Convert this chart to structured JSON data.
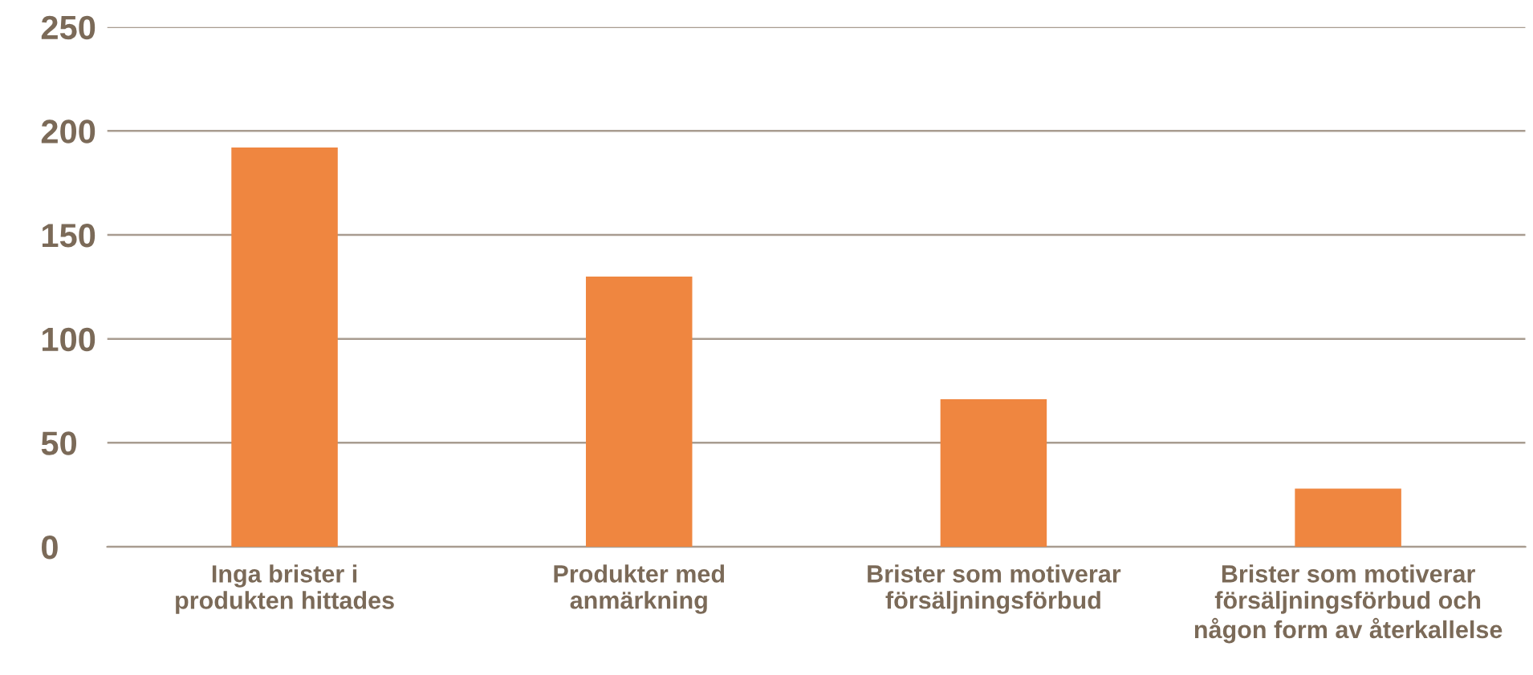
{
  "chart_data": {
    "type": "bar",
    "categories": [
      "Inga brister i\nprodukten hittades",
      "Produkter med\nanmärkning",
      "Brister som motiverar\nförsäljningsförbud",
      "Brister som motiverar\nförsäljningsförbud och\nnågon form av återkallelse"
    ],
    "values": [
      192,
      130,
      71,
      28
    ],
    "color": "#ef8640",
    "ylim": [
      0,
      250
    ],
    "yticks": [
      0,
      50,
      100,
      150,
      200,
      250
    ],
    "grid": "y"
  }
}
